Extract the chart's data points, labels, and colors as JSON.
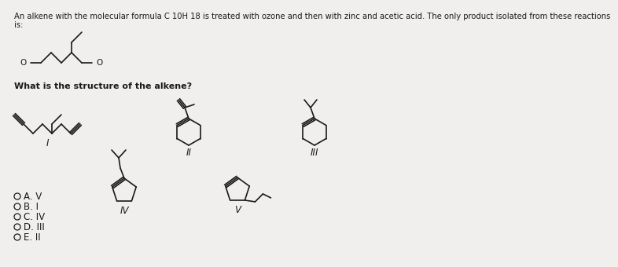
{
  "title_line1": "An alkene with the molecular formula C 10H 18 is treated with ozone and then with zinc and acetic acid. The only product isolated from these reactions",
  "title_line2": "is:",
  "question": "What is the structure of the alkene?",
  "choices": [
    "A. V",
    "B. I",
    "C. IV",
    "D. III",
    "E. II"
  ],
  "bg_color": "#f0efed",
  "text_color": "#1a1a1a",
  "line_color": "#1a1a1a",
  "title_fontsize": 7.2,
  "question_fontsize": 8.0,
  "label_fontsize": 8.5,
  "choice_fontsize": 8.5
}
